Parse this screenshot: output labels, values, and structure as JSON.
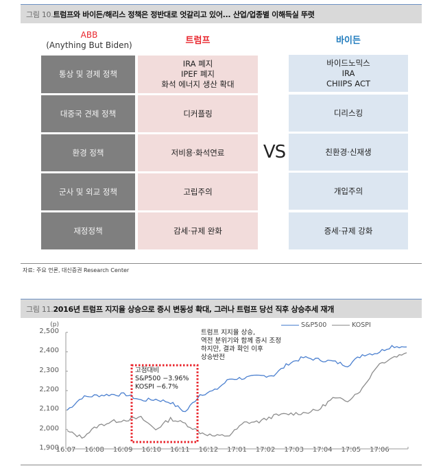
{
  "figure10": {
    "number": "그림 10.",
    "title": "트럼프와 바이든/해리스 정책은 정반대로 엇갈리고 있어... 산업/업종별 이해득실 뚜렷",
    "headers": {
      "abb_line1": "ABB",
      "abb_line2": "(Anything But Biden)",
      "trump": "트럼프",
      "biden": "바이든"
    },
    "vs": "VS",
    "rows": [
      {
        "category": "통상 및 경제 정책",
        "trump": [
          "IRA 폐지",
          "IPEF 폐지",
          "화석 에너지 생산 확대"
        ],
        "biden": [
          "바이드노믹스",
          "IRA",
          "CHIIPS ACT"
        ]
      },
      {
        "category": "대중국 견제 정책",
        "trump": [
          "디커플링"
        ],
        "biden": [
          "디리스킹"
        ]
      },
      {
        "category": "환경 정책",
        "trump": [
          "저비용·화석연료"
        ],
        "biden": [
          "친환경·신재생"
        ]
      },
      {
        "category": "군사 및 외교 정책",
        "trump": [
          "고립주의"
        ],
        "biden": [
          "개입주의"
        ]
      },
      {
        "category": "재정정책",
        "trump": [
          "감세·규제 완화"
        ],
        "biden": [
          "증세·규제 강화"
        ]
      }
    ],
    "source": "자료: 주요 언론, 대신증권 Research Center",
    "colors": {
      "category_bg": "#7f7f7f",
      "trump_bg": "#f2dcdb",
      "biden_bg": "#dce6f1",
      "trump_text": "#e8242b",
      "biden_text": "#1f7bbd"
    }
  },
  "figure11": {
    "number": "그림 11.",
    "title": "2016년 트럼프 지지율 상승으로 증시 변동성 확대, 그러나 트럼프 당선 직후 상승추세 재개",
    "annotation_box": "고점대비\nS&P500 −3.96%\nKOSPI −6.7%",
    "annotation_text": "트럼프 지지율 상승,\n역전 분위기와 함께 증시 조정\n하지만, 결과 확인 이후\n상승반전"
  },
  "chart_data": {
    "type": "line",
    "title": "2016년 트럼프 지지율 상승으로 증시 변동성 확대, 그러나 트럼프 당선 직후 상승추세 재개",
    "xlabel": "",
    "ylabel": "(p)",
    "ylim": [
      1900,
      2500
    ],
    "yticks": [
      "1,900",
      "2,000",
      "2,100",
      "2,200",
      "2,300",
      "2,400",
      "2,500"
    ],
    "xticks": [
      "16.07",
      "16.08",
      "16.09",
      "16.10",
      "16.11",
      "16.12",
      "17.01",
      "17.02",
      "17.03",
      "17.04",
      "17.05",
      "17.06"
    ],
    "grid": false,
    "legend_position": "top-right",
    "x": [
      "16.07a",
      "16.07b",
      "16.08a",
      "16.08b",
      "16.09a",
      "16.09b",
      "16.10a",
      "16.10b",
      "16.11a",
      "16.11b",
      "16.12a",
      "16.12b",
      "17.01a",
      "17.01b",
      "17.02a",
      "17.02b",
      "17.03a",
      "17.03b",
      "17.04a",
      "17.04b",
      "17.05a",
      "17.05b",
      "17.06a",
      "17.06b"
    ],
    "series": [
      {
        "name": "S&P500",
        "color": "#4a7fcf",
        "values": [
          2100,
          2165,
          2175,
          2180,
          2180,
          2150,
          2155,
          2140,
          2090,
          2180,
          2200,
          2260,
          2265,
          2275,
          2280,
          2340,
          2370,
          2360,
          2350,
          2330,
          2385,
          2395,
          2430,
          2425
        ]
      },
      {
        "name": "KOSPI",
        "color": "#8c8c8c",
        "values": [
          1990,
          1960,
          2015,
          2040,
          2050,
          2060,
          2000,
          2055,
          2030,
          1985,
          1965,
          1970,
          2035,
          2040,
          2070,
          2080,
          2085,
          2100,
          2160,
          2150,
          2210,
          2330,
          2370,
          2395
        ]
      }
    ],
    "annotations": [
      {
        "text": "고점대비 S&P500 −3.96% KOSPI −6.7%",
        "box": "red dotted",
        "range": [
          "16.09",
          "16.11"
        ]
      },
      {
        "text": "트럼프 지지율 상승, 역전 분위기와 함께 증시 조정 하지만, 결과 확인 이후 상승반전"
      }
    ]
  }
}
